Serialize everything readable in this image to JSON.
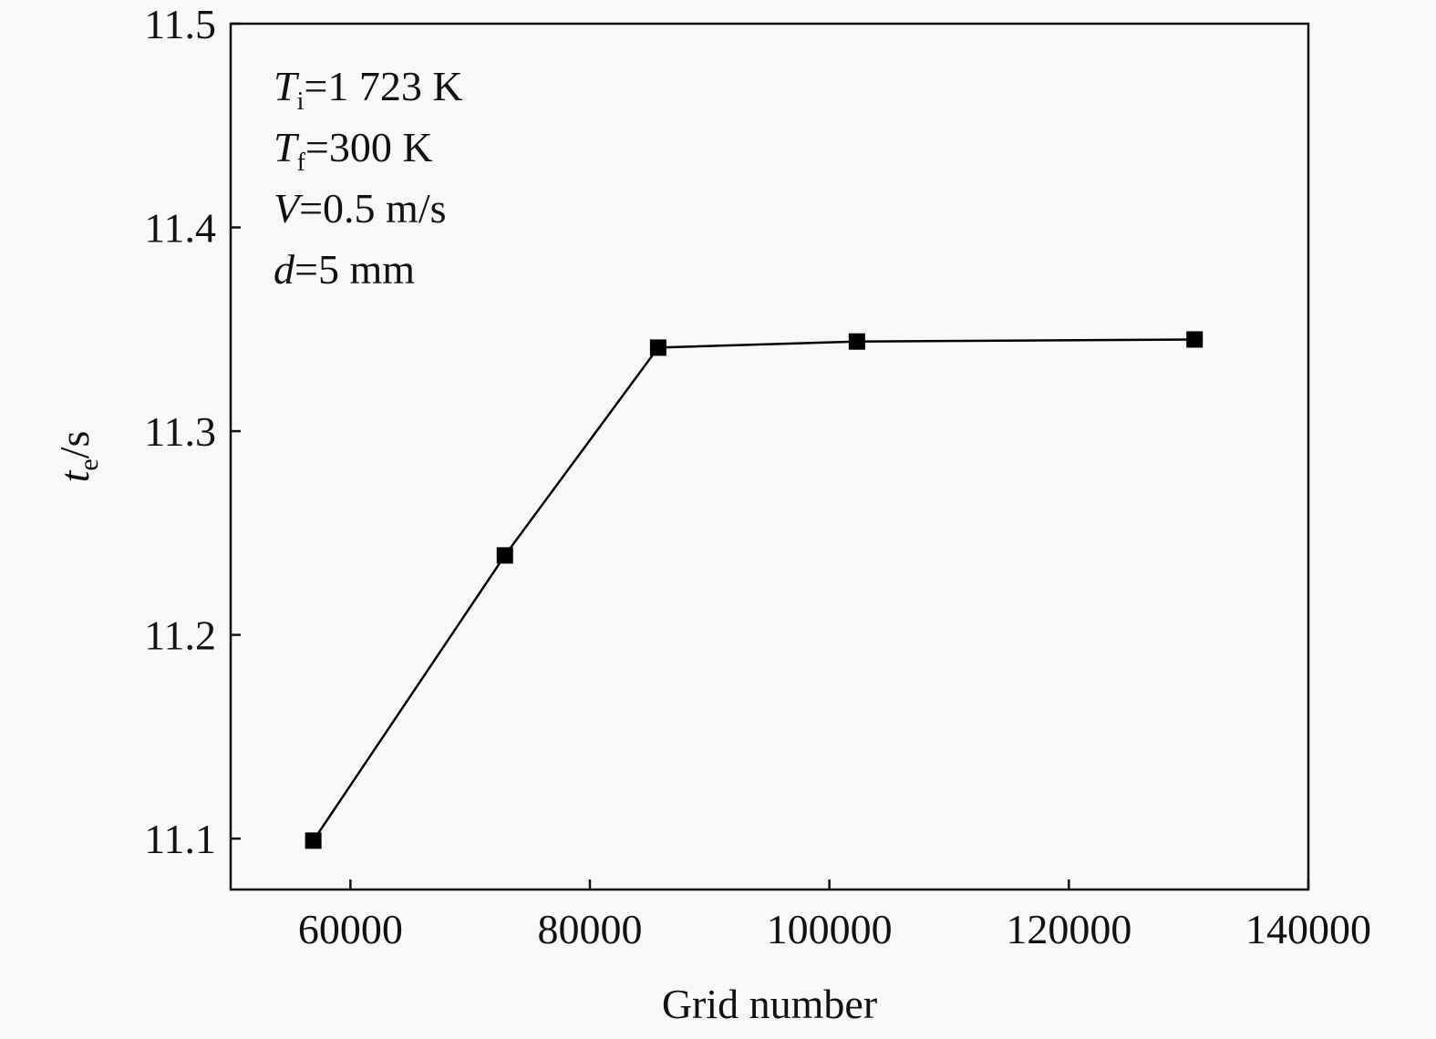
{
  "chart_data": {
    "type": "line",
    "title": "",
    "xlabel": "Grid number",
    "ylabel": {
      "var": "t",
      "sub": "e",
      "rest": "/s"
    },
    "xlim": [
      50000,
      140000
    ],
    "ylim": [
      11.075,
      11.5
    ],
    "xticks": [
      60000,
      80000,
      100000,
      120000,
      140000
    ],
    "yticks": [
      11.1,
      11.2,
      11.3,
      11.4,
      11.5
    ],
    "grid": false,
    "marker": "square",
    "color": "#000000",
    "series": [
      {
        "x": [
          56900,
          72900,
          85700,
          102300,
          130500
        ],
        "y": [
          11.099,
          11.239,
          11.341,
          11.344,
          11.345
        ]
      }
    ],
    "annotations": [
      {
        "var": "T",
        "sub": "i",
        "rest": "=1 723 K"
      },
      {
        "var": "T",
        "sub": "f",
        "rest": "=300 K"
      },
      {
        "var": "V",
        "sub": "",
        "rest": "=0.5 m/s"
      },
      {
        "var": "d",
        "sub": "",
        "rest": "=5 mm"
      }
    ]
  }
}
